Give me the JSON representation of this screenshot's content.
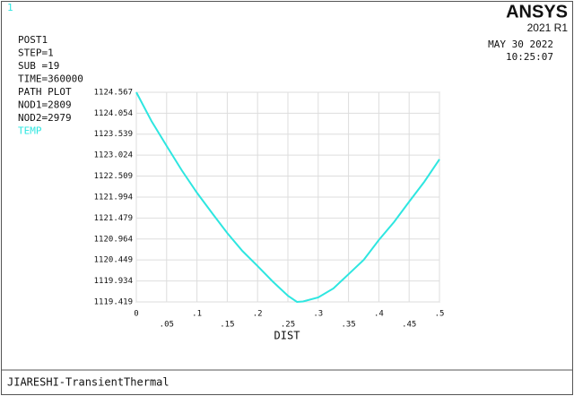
{
  "window": {
    "number": "1",
    "info": [
      "POST1",
      "STEP=1",
      "SUB =19",
      "TIME=360000",
      "PATH PLOT",
      "NOD1=2809",
      "NOD2=2979"
    ],
    "brand": "ANSYS",
    "version": "2021 R1",
    "date": "MAY 30 2022",
    "time": "10:25:07",
    "footer": "JIARESHI-TransientThermal"
  },
  "chart_data": {
    "type": "line",
    "xlabel": "DIST",
    "x": [
      0,
      0.025,
      0.05,
      0.075,
      0.1,
      0.125,
      0.15,
      0.175,
      0.2,
      0.225,
      0.25,
      0.265,
      0.275,
      0.3,
      0.325,
      0.35,
      0.375,
      0.4,
      0.425,
      0.45,
      0.475,
      0.5
    ],
    "series": [
      {
        "name": "TEMP",
        "color": "#2ee6e0",
        "values": [
          1124.567,
          1123.86,
          1123.25,
          1122.65,
          1122.1,
          1121.6,
          1121.11,
          1120.67,
          1120.3,
          1119.92,
          1119.57,
          1119.419,
          1119.43,
          1119.53,
          1119.75,
          1120.1,
          1120.45,
          1120.94,
          1121.38,
          1121.88,
          1122.37,
          1122.92
        ]
      }
    ],
    "xlim": [
      0,
      0.5
    ],
    "ylim": [
      1119.419,
      1124.567
    ],
    "xticks": [
      0,
      {
        "value": 0.05,
        "label": ".05"
      },
      {
        "value": 0.1,
        "label": ".1"
      },
      {
        "value": 0.15,
        "label": ".15"
      },
      {
        "value": 0.2,
        "label": ".2"
      },
      {
        "value": 0.25,
        "label": ".25"
      },
      {
        "value": 0.3,
        "label": ".3"
      },
      {
        "value": 0.35,
        "label": ".35"
      },
      {
        "value": 0.4,
        "label": ".4"
      },
      {
        "value": 0.45,
        "label": ".45"
      },
      {
        "value": 0.5,
        "label": ".5"
      }
    ],
    "yticks": [
      1119.419,
      1119.934,
      1120.449,
      1120.964,
      1121.479,
      1121.994,
      1122.509,
      1123.024,
      1123.539,
      1124.054,
      1124.567
    ],
    "grid": true
  }
}
